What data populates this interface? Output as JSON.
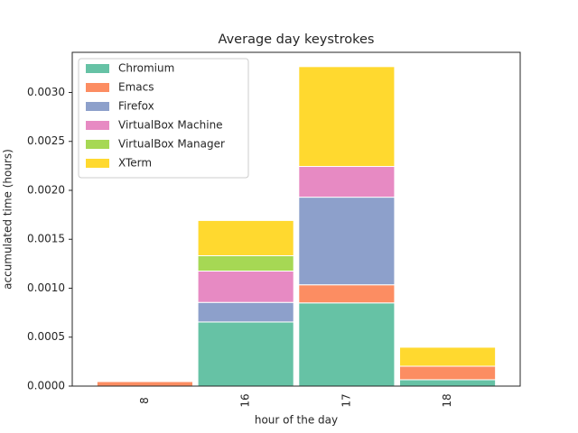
{
  "chart_data": {
    "type": "stacked_bar",
    "title": "Average day keystrokes",
    "x_label": "hour of the day",
    "y_label": "accumulated time (hours)",
    "categories": [
      "8",
      "16",
      "17",
      "18"
    ],
    "series": [
      {
        "name": "Chromium",
        "color": "#66c2a5",
        "values": [
          0,
          0.000655,
          0.00085,
          6.5e-05
        ]
      },
      {
        "name": "Emacs",
        "color": "#fc8d62",
        "values": [
          4.6e-05,
          0,
          0.000185,
          0.000138
        ]
      },
      {
        "name": "Firefox",
        "color": "#8da0cb",
        "values": [
          0,
          0.0002,
          0.000895,
          0
        ]
      },
      {
        "name": "VirtualBox Machine",
        "color": "#e78ac3",
        "values": [
          0,
          0.00032,
          0.000314,
          0
        ]
      },
      {
        "name": "VirtualBox Manager",
        "color": "#a6d854",
        "values": [
          0,
          0.000157,
          0,
          0
        ]
      },
      {
        "name": "XTerm",
        "color": "#ffd92f",
        "values": [
          0,
          0.00036,
          0.00102,
          0.000194
        ]
      }
    ],
    "ylim": [
      0,
      0.00341
    ],
    "yticks": [
      {
        "value": 0,
        "label": "0.0000"
      },
      {
        "value": 0.0005,
        "label": "0.0005"
      },
      {
        "value": 0.001,
        "label": "0.0010"
      },
      {
        "value": 0.0015,
        "label": "0.0015"
      },
      {
        "value": 0.002,
        "label": "0.0020"
      },
      {
        "value": 0.0025,
        "label": "0.0025"
      },
      {
        "value": 0.003,
        "label": "0.0030"
      }
    ],
    "legend": "upper left",
    "grid": false
  }
}
